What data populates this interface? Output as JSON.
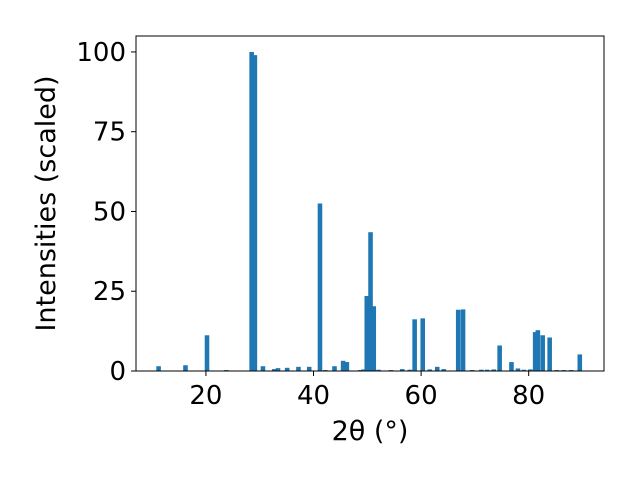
{
  "chart_data": {
    "type": "bar",
    "xlabel": "2θ (°)",
    "ylabel": "Intensities (scaled)",
    "xlim": [
      7,
      94
    ],
    "ylim": [
      0,
      105
    ],
    "bar_width": 0.85,
    "x_ticks": [
      20,
      40,
      60,
      80
    ],
    "y_ticks": [
      0,
      25,
      50,
      75,
      100
    ],
    "grid": false,
    "legend": "none",
    "colors": {
      "bar": "#1f77b4",
      "axis": "#000000",
      "background": "#ffffff"
    },
    "series": [
      {
        "x": [
          11.2,
          16.2,
          20.2,
          23.8,
          28.5,
          29.1,
          30.6,
          32.7,
          33.4,
          35.1,
          37.2,
          39.2,
          41.2,
          42.2,
          43.9,
          45.5,
          46.2,
          48.7,
          49.3,
          49.9,
          50.6,
          51.2,
          52.1,
          54.4,
          56.5,
          57.9,
          58.8,
          60.3,
          61.6,
          63.0,
          64.2,
          66.9,
          67.8,
          69.5,
          71.2,
          72.3,
          73.5,
          74.6,
          76.8,
          78.0,
          79.1,
          80.3,
          81.2,
          81.7,
          82.6,
          83.9,
          85.2,
          86.5,
          87.9,
          89.5
        ],
        "values": [
          1.5,
          1.8,
          11.2,
          0.3,
          100,
          99,
          1.5,
          0.6,
          0.9,
          1.0,
          1.3,
          1.3,
          52.5,
          0.3,
          1.5,
          3.2,
          2.8,
          0.3,
          0.5,
          23.5,
          43.5,
          20.3,
          0.4,
          0.3,
          0.6,
          0.4,
          16.2,
          16.5,
          0.5,
          1.3,
          0.6,
          19.2,
          19.3,
          0.3,
          0.4,
          0.4,
          0.5,
          8.0,
          2.8,
          0.8,
          0.4,
          0.5,
          12.2,
          12.8,
          11.2,
          10.5,
          0.3,
          0.3,
          0.3,
          5.2
        ]
      }
    ]
  }
}
